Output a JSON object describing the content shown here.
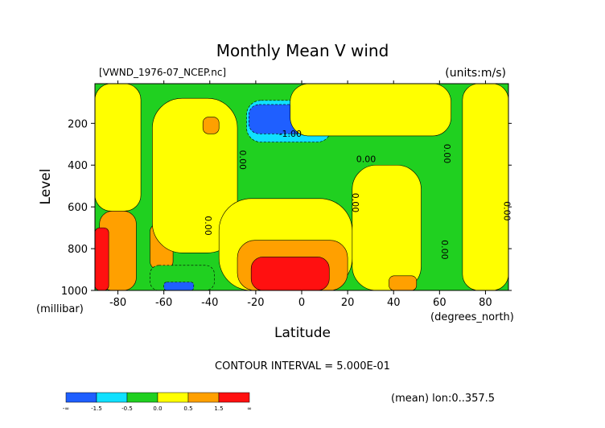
{
  "chart_data": {
    "type": "contour",
    "title": "Monthly Mean V wind",
    "file_label": "[VWND_1976-07_NCEP.nc]",
    "units_label": "(units:m/s)",
    "xlabel": "Latitude",
    "x_units": "(degrees_north)",
    "ylabel": "Level",
    "y_units": "(millibar)",
    "xlim": [
      -90,
      90
    ],
    "ylim": [
      1000,
      10
    ],
    "x_ticks": [
      -80,
      -60,
      -40,
      -20,
      0,
      20,
      40,
      60,
      80
    ],
    "y_ticks": [
      200,
      400,
      600,
      800,
      1000
    ],
    "contour_interval_text": "CONTOUR INTERVAL = 5.000E-01",
    "footer_text": "(mean) lon:0..357.5",
    "contour_labels": [
      {
        "text": "-1.00",
        "x": -5,
        "y": 265
      },
      {
        "text": "0.00",
        "x": -27,
        "y": 375,
        "rotate": true
      },
      {
        "text": "0.00",
        "x": -42,
        "y": 690,
        "rotate": true
      },
      {
        "text": "0.00",
        "x": 28,
        "y": 385
      },
      {
        "text": "0.00",
        "x": 22,
        "y": 580,
        "rotate": true
      },
      {
        "text": "0.00",
        "x": 62,
        "y": 345,
        "rotate": true
      },
      {
        "text": "0.00",
        "x": 61,
        "y": 805,
        "rotate": true
      },
      {
        "text": "0.00",
        "x": 88,
        "y": 620,
        "rotate": true
      }
    ],
    "colorbar": {
      "labels": [
        "-∞",
        "-1.5",
        "-0.5",
        "0.0",
        "0.5",
        "1.5",
        "∞"
      ],
      "colors": [
        "#1f5fff",
        "#10e0ff",
        "#20d020",
        "#ffff00",
        "#ffa000",
        "#ff1010"
      ]
    },
    "field": {
      "background_level": 0.2,
      "features": [
        {
          "level": 0.2,
          "lat_min": -90,
          "lat_max": 90,
          "p_min": 10,
          "p_max": 1000
        },
        {
          "level": 0.2,
          "lat_min": -90,
          "lat_max": -70,
          "p_min": 10,
          "p_max": 620
        },
        {
          "level": 0.7,
          "lat_min": -88,
          "lat_max": -72,
          "p_min": 620,
          "p_max": 1000
        },
        {
          "level": 0.7,
          "lat_min": -66,
          "lat_max": -56,
          "p_min": 680,
          "p_max": 900
        },
        {
          "level": 2.0,
          "lat_min": -90,
          "lat_max": -84,
          "p_min": 700,
          "p_max": 1000
        },
        {
          "level": 0.3,
          "lat_min": -65,
          "lat_max": -28,
          "p_min": 80,
          "p_max": 820
        },
        {
          "level": -0.3,
          "lat_min": -66,
          "lat_max": -38,
          "p_min": 880,
          "p_max": 1000
        },
        {
          "level": -1.7,
          "lat_min": -60,
          "lat_max": -47,
          "p_min": 960,
          "p_max": 1000
        },
        {
          "level": -0.7,
          "lat_min": -24,
          "lat_max": 13,
          "p_min": 90,
          "p_max": 290
        },
        {
          "level": -1.7,
          "lat_min": -23,
          "lat_max": 11,
          "p_min": 110,
          "p_max": 250
        },
        {
          "level": 0.3,
          "lat_min": -36,
          "lat_max": 22,
          "p_min": 560,
          "p_max": 1000
        },
        {
          "level": 0.9,
          "lat_min": -28,
          "lat_max": 20,
          "p_min": 760,
          "p_max": 1000
        },
        {
          "level": 2.0,
          "lat_min": -22,
          "lat_max": 12,
          "p_min": 840,
          "p_max": 1000
        },
        {
          "level": 0.3,
          "lat_min": -5,
          "lat_max": 65,
          "p_min": 10,
          "p_max": 260
        },
        {
          "level": 0.3,
          "lat_min": 22,
          "lat_max": 52,
          "p_min": 400,
          "p_max": 1000
        },
        {
          "level": 0.7,
          "lat_min": 38,
          "lat_max": 50,
          "p_min": 930,
          "p_max": 1000
        },
        {
          "level": 0.3,
          "lat_min": 70,
          "lat_max": 90,
          "p_min": 10,
          "p_max": 1000
        },
        {
          "level": 0.7,
          "lat_min": -43,
          "lat_max": -36,
          "p_min": 170,
          "p_max": 250
        }
      ]
    }
  }
}
